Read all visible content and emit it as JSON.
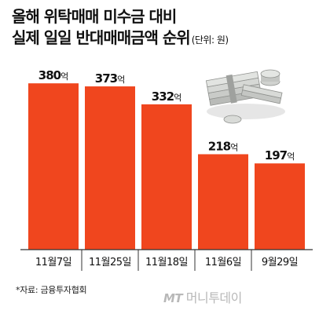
{
  "header": {
    "title_line1": "올해 위탁매매 미수금 대비",
    "title_line2": "실제 일일 반대매매금액 순위",
    "unit": "(단위: 원)"
  },
  "footer": {
    "source": "*자료: 금융투자협회",
    "credit_logo": "MT",
    "credit_name": "머니투데이"
  },
  "colors": {
    "bar": "#f0461e",
    "axis": "#333333",
    "label": "#111111"
  },
  "chart_data": {
    "type": "bar",
    "title": "올해 위탁매매 미수금 대비 실제 일일 반대매매금액 순위",
    "unit": "(단위: 원)",
    "categories": [
      "11월7일",
      "11월25일",
      "11월18일",
      "11월6일",
      "9월29일"
    ],
    "values": [
      380,
      373,
      332,
      218,
      197
    ],
    "value_suffix": "억",
    "ylim": [
      0,
      400
    ],
    "grid": false,
    "legend": "none"
  }
}
